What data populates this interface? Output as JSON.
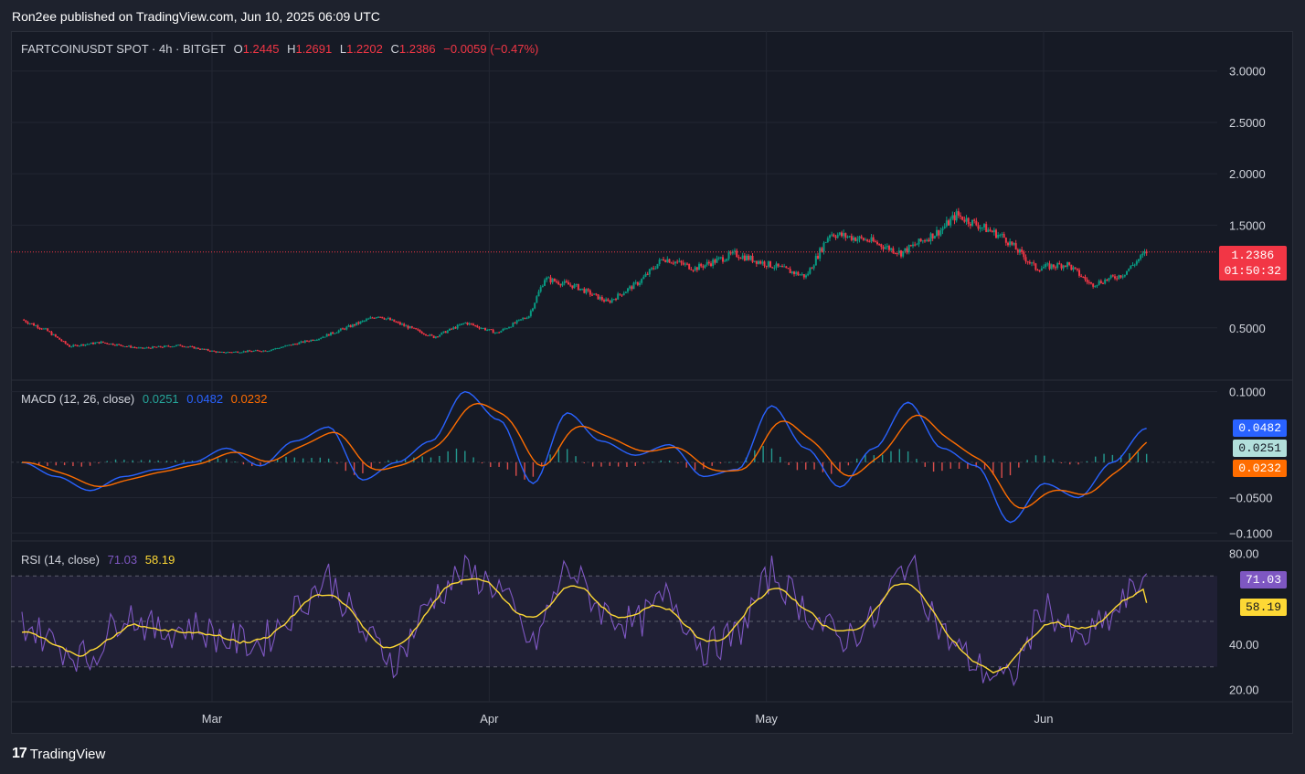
{
  "header": {
    "caption": "Ron2ee published on TradingView.com, Jun 10, 2025 06:09 UTC"
  },
  "legend": {
    "symbol": "FARTCOINUSDT SPOT · 4h · BITGET",
    "open_label": "O",
    "open": "1.2445",
    "high_label": "H",
    "high": "1.2691",
    "low_label": "L",
    "low": "1.2202",
    "close_label": "C",
    "close": "1.2386",
    "change": "−0.0059 (−0.47%)"
  },
  "price_tag": {
    "price": "1.2386",
    "countdown": "01:50:32"
  },
  "macd_legend": {
    "title": "MACD (12, 26, close)",
    "hist": "0.0251",
    "macd": "0.0482",
    "signal": "0.0232"
  },
  "macd_tags": {
    "macd": "0.0482",
    "hist": "0.0251",
    "signal": "0.0232"
  },
  "rsi_legend": {
    "title": "RSI (14, close)",
    "rsi": "71.03",
    "ma": "58.19"
  },
  "rsi_tags": {
    "rsi": "71.03",
    "ma": "58.19"
  },
  "colors": {
    "up": "#089981",
    "down": "#f23645",
    "macd": "#2962ff",
    "signal": "#ff6d00",
    "rsi": "#7e57c2",
    "rsi_ma": "#fdd835",
    "grid": "#232733",
    "text": "#d1d4dc"
  },
  "footer": {
    "brand": "TradingView",
    "logo_mark": "17"
  },
  "chart_data": [
    {
      "type": "candlestick",
      "title": "FARTCOINUSDT SPOT · 4h · BITGET",
      "x_ticks": [
        "Mar",
        "Apr",
        "May",
        "Jun"
      ],
      "y_ticks": [
        "3.0000",
        "2.5000",
        "2.0000",
        "1.5000",
        "0.5000"
      ],
      "ylim": [
        0,
        3.3
      ],
      "last_price": 1.2386,
      "price_path": [
        {
          "x": 0,
          "y": 0.58
        },
        {
          "x": 6,
          "y": 0.48
        },
        {
          "x": 12,
          "y": 0.32
        },
        {
          "x": 20,
          "y": 0.36
        },
        {
          "x": 30,
          "y": 0.3
        },
        {
          "x": 40,
          "y": 0.33
        },
        {
          "x": 50,
          "y": 0.26
        },
        {
          "x": 62,
          "y": 0.28
        },
        {
          "x": 75,
          "y": 0.4
        },
        {
          "x": 90,
          "y": 0.62
        },
        {
          "x": 104,
          "y": 0.41
        },
        {
          "x": 112,
          "y": 0.55
        },
        {
          "x": 120,
          "y": 0.45
        },
        {
          "x": 128,
          "y": 0.62
        },
        {
          "x": 132,
          "y": 0.98
        },
        {
          "x": 140,
          "y": 0.9
        },
        {
          "x": 148,
          "y": 0.75
        },
        {
          "x": 156,
          "y": 0.95
        },
        {
          "x": 162,
          "y": 1.18
        },
        {
          "x": 170,
          "y": 1.08
        },
        {
          "x": 180,
          "y": 1.22
        },
        {
          "x": 190,
          "y": 1.1
        },
        {
          "x": 198,
          "y": 1.0
        },
        {
          "x": 204,
          "y": 1.42
        },
        {
          "x": 214,
          "y": 1.35
        },
        {
          "x": 222,
          "y": 1.23
        },
        {
          "x": 232,
          "y": 1.45
        },
        {
          "x": 236,
          "y": 1.6
        },
        {
          "x": 248,
          "y": 1.38
        },
        {
          "x": 256,
          "y": 1.08
        },
        {
          "x": 264,
          "y": 1.12
        },
        {
          "x": 270,
          "y": 0.92
        },
        {
          "x": 278,
          "y": 1.02
        },
        {
          "x": 284,
          "y": 1.24
        }
      ],
      "x_range": [
        0,
        300
      ]
    },
    {
      "type": "line",
      "title": "MACD (12, 26, close)",
      "y_ticks": [
        "0.1000",
        "−0.0500",
        "−0.1000"
      ],
      "ylim": [
        -0.11,
        0.115
      ],
      "series": [
        {
          "name": "MACD",
          "values": [
            0,
            -0.02,
            -0.04,
            -0.02,
            -0.01,
            0.0,
            0.02,
            -0.005,
            0.03,
            0.05,
            -0.025,
            0.0,
            0.03,
            0.1,
            0.06,
            -0.03,
            0.07,
            0.03,
            0.01,
            0.025,
            -0.02,
            -0.01,
            0.08,
            0.02,
            -0.035,
            0.02,
            0.085,
            0.02,
            -0.005,
            -0.085,
            -0.03,
            -0.05,
            0.0,
            0.0482
          ]
        },
        {
          "name": "Signal",
          "values": [
            0,
            -0.02,
            -0.04,
            -0.02,
            -0.01,
            0.0,
            0.02,
            -0.005,
            0.03,
            0.05,
            -0.025,
            0.0,
            0.03,
            0.1,
            0.06,
            -0.03,
            0.07,
            0.03,
            0.01,
            0.025,
            -0.02,
            -0.01,
            0.08,
            0.02,
            -0.035,
            0.02,
            0.085,
            0.02,
            -0.005,
            -0.085,
            -0.03,
            -0.05,
            0.0,
            0.0232
          ]
        }
      ]
    },
    {
      "type": "line",
      "title": "RSI (14, close)",
      "y_ticks": [
        "80.00",
        "40.00",
        "20.00"
      ],
      "ylim": [
        15,
        85
      ],
      "bands": [
        70,
        50,
        30
      ],
      "series": [
        {
          "name": "RSI",
          "values": [
            50,
            40,
            33,
            55,
            45,
            48,
            42,
            40,
            55,
            70,
            45,
            32,
            60,
            72,
            65,
            38,
            75,
            55,
            48,
            62,
            38,
            44,
            72,
            55,
            42,
            50,
            78,
            45,
            30,
            23,
            58,
            40,
            52,
            71.03
          ]
        },
        {
          "name": "MA",
          "values": [
            50,
            40,
            33,
            55,
            45,
            48,
            42,
            40,
            55,
            70,
            45,
            32,
            60,
            72,
            65,
            38,
            75,
            55,
            48,
            62,
            38,
            44,
            72,
            55,
            42,
            50,
            78,
            45,
            30,
            23,
            58,
            40,
            52,
            58.19
          ]
        }
      ]
    }
  ]
}
